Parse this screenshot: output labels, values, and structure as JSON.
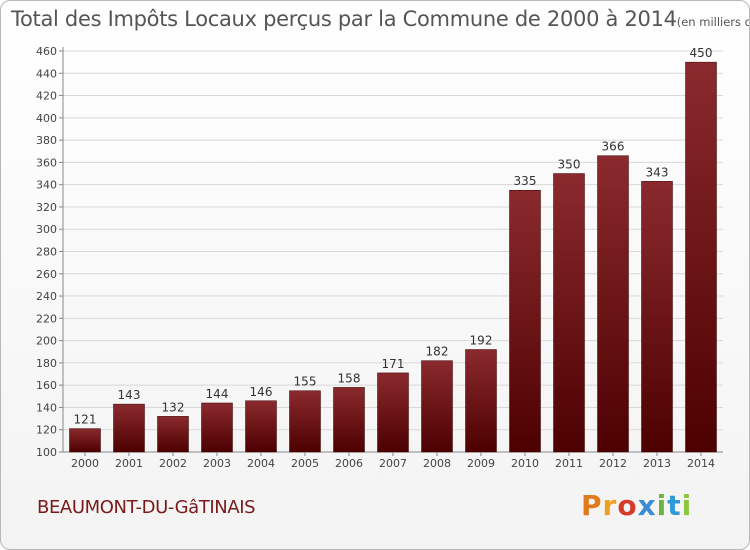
{
  "title": "Total des Impôts Locaux perçus par la Commune de 2000 à 2014",
  "title_unit": "(en milliers d'€)",
  "commune": "BEAUMONT-DU-GâTINAIS",
  "logo": {
    "letters": [
      "P",
      "r",
      "o",
      "x",
      "i",
      "t",
      "i"
    ]
  },
  "colors": {
    "bar_top": "#8a2a2e",
    "bar_bottom": "#4d0000",
    "commune": "#7a1a1a"
  },
  "chart_data": {
    "type": "bar",
    "categories": [
      "2000",
      "2001",
      "2002",
      "2003",
      "2004",
      "2005",
      "2006",
      "2007",
      "2008",
      "2009",
      "2010",
      "2011",
      "2012",
      "2013",
      "2014"
    ],
    "values": [
      121,
      143,
      132,
      144,
      146,
      155,
      158,
      171,
      182,
      192,
      335,
      350,
      366,
      343,
      450
    ],
    "ylim": [
      100,
      460
    ],
    "yticks": [
      100,
      120,
      140,
      160,
      180,
      200,
      220,
      240,
      260,
      280,
      300,
      320,
      340,
      360,
      380,
      400,
      420,
      440,
      460
    ],
    "grid": "horizontal",
    "legend": "none"
  }
}
